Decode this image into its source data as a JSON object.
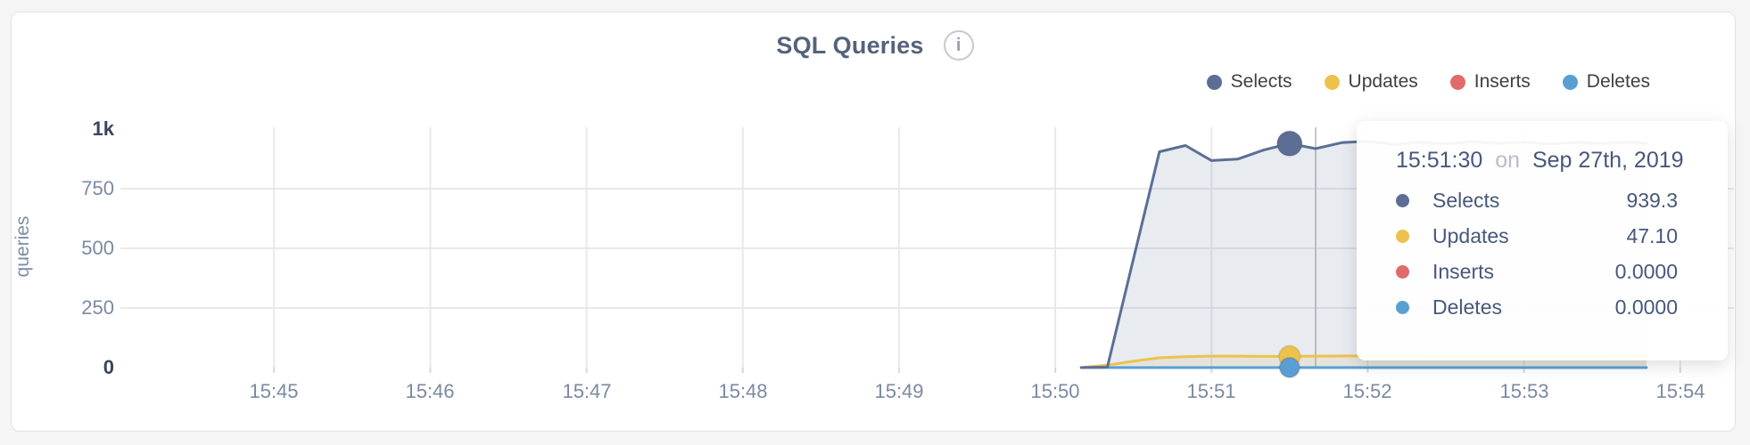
{
  "header": {
    "title": "SQL Queries",
    "info_glyph": "i"
  },
  "legend": {
    "items": [
      {
        "label": "Selects",
        "color": "#5c6e94"
      },
      {
        "label": "Updates",
        "color": "#ecc24d"
      },
      {
        "label": "Inserts",
        "color": "#e16b6b"
      },
      {
        "label": "Deletes",
        "color": "#5a9fd4"
      }
    ]
  },
  "tooltip": {
    "time": "15:51:30",
    "on_word": "on",
    "date": "Sep 27th, 2019",
    "rows": [
      {
        "label": "Selects",
        "value": "939.3",
        "color": "#5c6e94"
      },
      {
        "label": "Updates",
        "value": "47.10",
        "color": "#ecc24d"
      },
      {
        "label": "Inserts",
        "value": "0.0000",
        "color": "#e16b6b"
      },
      {
        "label": "Deletes",
        "value": "0.0000",
        "color": "#5a9fd4"
      }
    ]
  },
  "chart_data": {
    "type": "area",
    "title": "SQL Queries",
    "ylabel": "queries",
    "ylim": [
      0,
      1000
    ],
    "xlim": [
      "15:44:01",
      "15:54:22"
    ],
    "grid": {
      "horizontal_at": [
        250,
        500,
        750
      ],
      "vertical_every": "1 minute"
    },
    "yticks": [
      {
        "label": "1k",
        "value": 1000,
        "extreme": true
      },
      {
        "label": "750",
        "value": 750,
        "extreme": false
      },
      {
        "label": "500",
        "value": 500,
        "extreme": false
      },
      {
        "label": "250",
        "value": 250,
        "extreme": false
      },
      {
        "label": "0",
        "value": 0,
        "extreme": true
      }
    ],
    "xticks": [
      "15:45",
      "15:46",
      "15:47",
      "15:48",
      "15:49",
      "15:50",
      "15:51",
      "15:52",
      "15:53",
      "15:54"
    ],
    "highlight": {
      "time": "15:51:30",
      "crosshair_time": "15:51:40"
    },
    "series": [
      {
        "name": "Selects",
        "color": "#5c6e94",
        "fill": true,
        "dot_radius": 14,
        "points": [
          [
            "15:50:10",
            0
          ],
          [
            "15:50:20",
            2
          ],
          [
            "15:50:30",
            455
          ],
          [
            "15:50:40",
            905
          ],
          [
            "15:50:50",
            931
          ],
          [
            "15:51:00",
            868
          ],
          [
            "15:51:10",
            874
          ],
          [
            "15:51:20",
            912
          ],
          [
            "15:51:30",
            939.3
          ],
          [
            "15:51:40",
            918
          ],
          [
            "15:51:50",
            943
          ],
          [
            "15:52:00",
            949
          ],
          [
            "15:52:10",
            935
          ],
          [
            "15:52:20",
            944
          ],
          [
            "15:52:30",
            938
          ],
          [
            "15:52:40",
            947
          ],
          [
            "15:52:50",
            940
          ],
          [
            "15:53:00",
            945
          ],
          [
            "15:53:10",
            937
          ],
          [
            "15:53:20",
            944
          ],
          [
            "15:53:30",
            939
          ],
          [
            "15:53:40",
            945
          ],
          [
            "15:53:47",
            941
          ]
        ]
      },
      {
        "name": "Updates",
        "color": "#ecc24d",
        "fill": true,
        "dot_radius": 12,
        "points": [
          [
            "15:50:10",
            0
          ],
          [
            "15:50:20",
            10
          ],
          [
            "15:50:30",
            27
          ],
          [
            "15:50:40",
            41
          ],
          [
            "15:50:50",
            46
          ],
          [
            "15:51:00",
            48
          ],
          [
            "15:51:10",
            48
          ],
          [
            "15:51:20",
            47
          ],
          [
            "15:51:30",
            47.1
          ],
          [
            "15:51:40",
            48
          ],
          [
            "15:52:00",
            49
          ],
          [
            "15:52:30",
            48
          ],
          [
            "15:53:00",
            48
          ],
          [
            "15:53:30",
            48
          ],
          [
            "15:53:47",
            47
          ]
        ]
      },
      {
        "name": "Inserts",
        "color": "#e16b6b",
        "fill": true,
        "dot_radius": 11,
        "points": [
          [
            "15:50:10",
            0
          ],
          [
            "15:51:30",
            0
          ],
          [
            "15:53:47",
            0
          ]
        ]
      },
      {
        "name": "Deletes",
        "color": "#5a9fd4",
        "fill": true,
        "dot_radius": 11,
        "points": [
          [
            "15:50:10",
            0
          ],
          [
            "15:51:30",
            0
          ],
          [
            "15:53:47",
            0
          ]
        ]
      }
    ]
  }
}
